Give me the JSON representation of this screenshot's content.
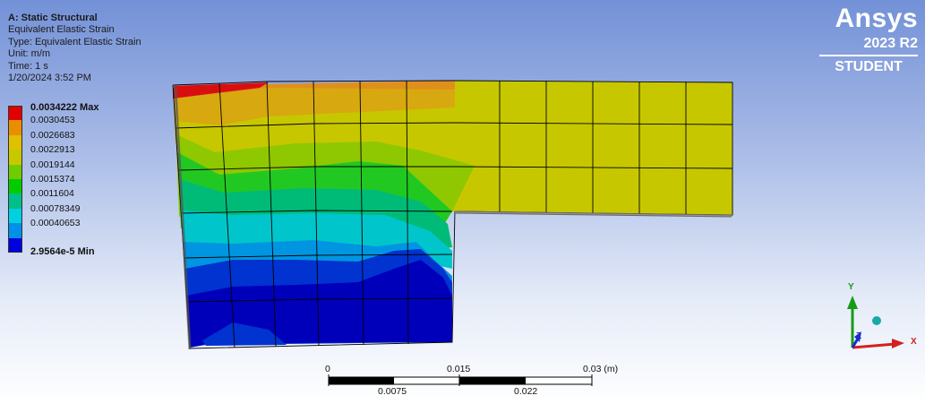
{
  "info": {
    "title": "A: Static Structural",
    "result": "Equivalent Elastic Strain",
    "type": "Type: Equivalent Elastic Strain",
    "unit": "Unit: m/m",
    "time": "Time: 1 s",
    "date": "1/20/2024 3:52 PM"
  },
  "legend": {
    "items": [
      {
        "label": "0.0034222 Max",
        "color": "#e00000",
        "strong": true
      },
      {
        "label": "0.0030453",
        "color": "#e88e00",
        "strong": false
      },
      {
        "label": "0.0026683",
        "color": "#e0c000",
        "strong": false
      },
      {
        "label": "0.0022913",
        "color": "#c8c800",
        "strong": false
      },
      {
        "label": "0.0019144",
        "color": "#6fcc00",
        "strong": false
      },
      {
        "label": "0.0015374",
        "color": "#00cc00",
        "strong": false
      },
      {
        "label": "0.0011604",
        "color": "#00c08a",
        "strong": false
      },
      {
        "label": "0.00078349",
        "color": "#00d0e0",
        "strong": false
      },
      {
        "label": "0.00040653",
        "color": "#0090e8",
        "strong": false
      },
      {
        "label": "2.9564e-5 Min",
        "color": "#0000e0",
        "strong": true
      }
    ]
  },
  "brand": {
    "logo": "Ansys",
    "version": "2023 R2",
    "edition": "STUDENT"
  },
  "scale_bar": {
    "labels_top": [
      "0",
      "0.015",
      "0.03 (m)"
    ],
    "labels_bottom": [
      "0.0075",
      "0.022"
    ]
  },
  "triad": {
    "x_label": "X",
    "y_label": "Y",
    "z_label": "Z",
    "x_color": "#d42020",
    "y_color": "#189a18",
    "z_color": "#1a2ad0",
    "iso_color": "#1aa8a8"
  },
  "contour_colors": {
    "max": "#d90f0f",
    "orange": "#e0901a",
    "yellow_orange": "#d8b010",
    "yellow": "#c7c700",
    "yellow_green": "#8fc800",
    "green": "#22c822",
    "teal_green": "#00bb77",
    "cyan": "#00c6cc",
    "light_blue": "#0095e0",
    "blue": "#0033d0",
    "min": "#0000bb"
  }
}
